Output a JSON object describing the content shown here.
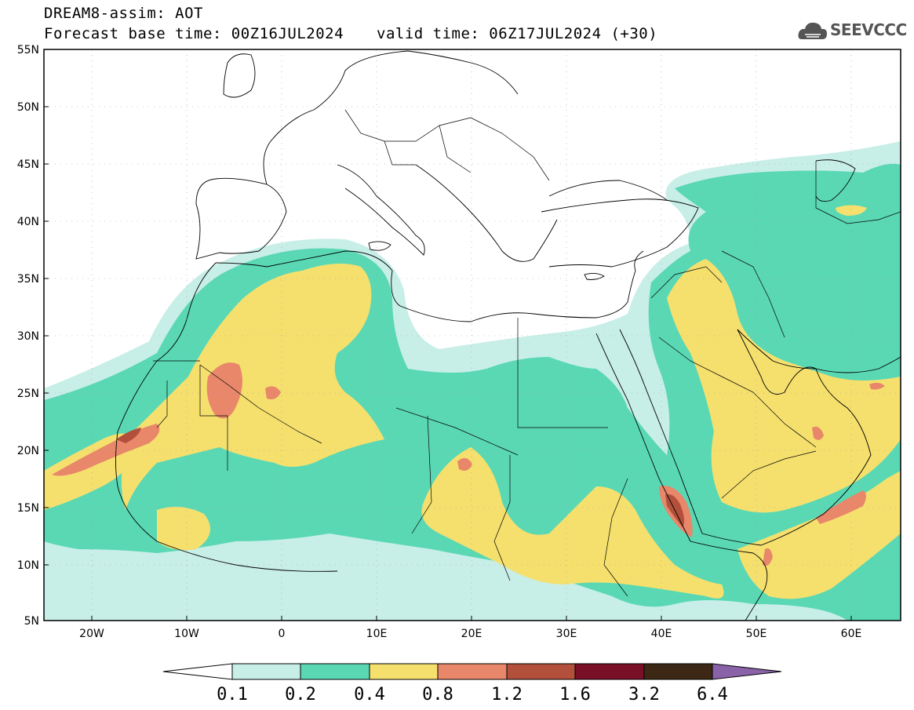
{
  "header": {
    "line1": "DREAM8-assim: AOT",
    "line2": "Forecast base time: 00Z16JUL2024",
    "line3": "valid time: 06Z17JUL2024 (+30)",
    "logo_text": "SEEVCCC"
  },
  "map": {
    "lat_labels": [
      "55N",
      "50N",
      "45N",
      "40N",
      "35N",
      "30N",
      "25N",
      "20N",
      "15N",
      "10N",
      "5N"
    ],
    "lon_labels": [
      "20W",
      "10W",
      "0",
      "10E",
      "20E",
      "30E",
      "40E",
      "50E",
      "60E"
    ],
    "extent": {
      "lon_min": -25,
      "lon_max": 65,
      "lat_min": 5,
      "lat_max": 55
    }
  },
  "colorbar": {
    "levels": [
      "0.1",
      "0.2",
      "0.4",
      "0.8",
      "1.2",
      "1.6",
      "3.2",
      "6.4"
    ],
    "colors": [
      "#c8eee8",
      "#5ad8b4",
      "#f5e06e",
      "#e8876a",
      "#b2503c",
      "#7a0f28",
      "#3c2814"
    ],
    "below_color": "#ffffff",
    "above_color": "#8a62a8"
  },
  "colors": {
    "very_light": "#c8eee8",
    "teal": "#5ad8b4",
    "yellow": "#f5e06e",
    "salmon": "#e8876a",
    "brown": "#b2503c"
  }
}
